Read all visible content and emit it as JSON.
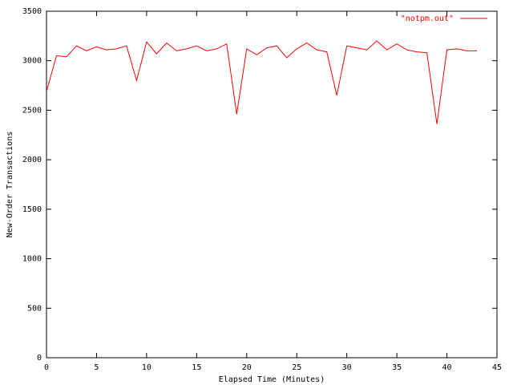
{
  "chart_data": {
    "type": "line",
    "xlabel": "Elapsed Time (Minutes)",
    "ylabel": "New-Order Transactions",
    "x": [
      0,
      1,
      2,
      3,
      4,
      5,
      6,
      7,
      8,
      9,
      10,
      11,
      12,
      13,
      14,
      15,
      16,
      17,
      18,
      19,
      20,
      21,
      22,
      23,
      24,
      25,
      26,
      27,
      28,
      29,
      30,
      31,
      32,
      33,
      34,
      35,
      36,
      37,
      38,
      39,
      40,
      41,
      42,
      43
    ],
    "series": [
      {
        "name": "\"notpm.out\"",
        "color": "#ff0000",
        "values": [
          2690,
          3050,
          3040,
          3150,
          3100,
          3140,
          3110,
          3120,
          3150,
          2800,
          3190,
          3070,
          3180,
          3100,
          3120,
          3150,
          3100,
          3120,
          3170,
          2460,
          3120,
          3060,
          3130,
          3150,
          3030,
          3120,
          3180,
          3110,
          3090,
          2650,
          3150,
          3130,
          3110,
          3200,
          3110,
          3170,
          3110,
          3090,
          3080,
          2360,
          3110,
          3120,
          3100,
          3100
        ]
      }
    ],
    "xlim": [
      0,
      45
    ],
    "xticks": [
      0,
      5,
      10,
      15,
      20,
      25,
      30,
      35,
      40,
      45
    ],
    "ylim": [
      0,
      3500
    ],
    "yticks": [
      0,
      500,
      1000,
      1500,
      2000,
      2500,
      3000,
      3500
    ],
    "legend": "top-right",
    "grid": false
  }
}
